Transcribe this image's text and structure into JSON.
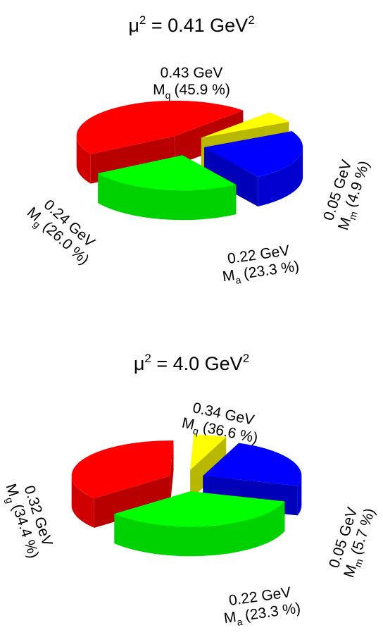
{
  "chart_data": [
    {
      "type": "pie",
      "style": "3d-exploded",
      "title": {
        "main": "μ",
        "sup1": "2",
        "mid": " = 0.41 GeV",
        "sup2": "2"
      },
      "slices": [
        {
          "symbol": "M",
          "sub": "q",
          "value_gev": 0.43,
          "mass_label": "0.43 GeV",
          "pct_label": "(45.9 %)",
          "percent": 45.9,
          "color": "#ff0000"
        },
        {
          "symbol": "M",
          "sub": "m",
          "value_gev": 0.05,
          "mass_label": "0.05 GeV",
          "pct_label": "(4.9 %)",
          "percent": 4.9,
          "color": "#ffff00"
        },
        {
          "symbol": "M",
          "sub": "a",
          "value_gev": 0.22,
          "mass_label": "0.22 GeV",
          "pct_label": "(23.3 %)",
          "percent": 23.3,
          "color": "#0000ff"
        },
        {
          "symbol": "M",
          "sub": "g",
          "value_gev": 0.24,
          "mass_label": "0.24 GeV",
          "pct_label": "(26.0 %)",
          "percent": 26.0,
          "color": "#00ff00"
        }
      ]
    },
    {
      "type": "pie",
      "style": "3d-exploded",
      "title": {
        "main": "μ",
        "sup1": "2",
        "mid": " = 4.0 GeV",
        "sup2": "2"
      },
      "slices": [
        {
          "symbol": "M",
          "sub": "q",
          "value_gev": 0.34,
          "mass_label": "0.34 GeV",
          "pct_label": "(36.6 %)",
          "percent": 36.6,
          "color": "#ff0000"
        },
        {
          "symbol": "M",
          "sub": "m",
          "value_gev": 0.05,
          "mass_label": "0.05 GeV",
          "pct_label": "(5.7 %)",
          "percent": 5.7,
          "color": "#ffff00"
        },
        {
          "symbol": "M",
          "sub": "a",
          "value_gev": 0.22,
          "mass_label": "0.22 GeV",
          "pct_label": "(23.3 %)",
          "percent": 23.3,
          "color": "#0000ff"
        },
        {
          "symbol": "M",
          "sub": "g",
          "value_gev": 0.32,
          "mass_label": "0.32 GeV",
          "pct_label": "(34.4 %)",
          "percent": 34.4,
          "color": "#00ff00"
        }
      ]
    }
  ]
}
